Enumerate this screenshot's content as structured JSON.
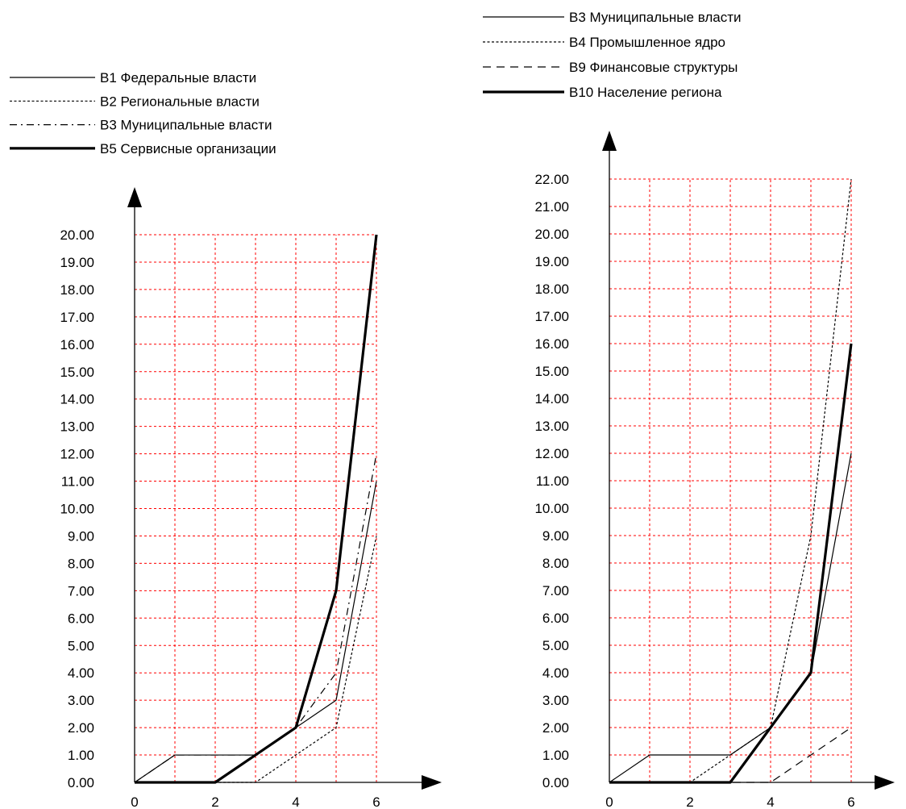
{
  "chart_data": [
    {
      "type": "line",
      "title": "",
      "xlabel": "",
      "ylabel": "",
      "xlim": [
        0,
        6
      ],
      "ylim": [
        0,
        20
      ],
      "x_ticks": [
        "0",
        "2",
        "4",
        "6"
      ],
      "y_ticks": [
        "0.00",
        "1.00",
        "2.00",
        "3.00",
        "4.00",
        "5.00",
        "6.00",
        "7.00",
        "8.00",
        "9.00",
        "10.00",
        "11.00",
        "12.00",
        "13.00",
        "14.00",
        "15.00",
        "16.00",
        "17.00",
        "18.00",
        "19.00",
        "20.00"
      ],
      "grid": true,
      "grid_color": "#ff0000",
      "legend_position": "top-left",
      "x": [
        0,
        1,
        2,
        3,
        4,
        5,
        6
      ],
      "series": [
        {
          "name": "B1 Федеральные власти",
          "style": "solid",
          "values": [
            0,
            1,
            1,
            1,
            2,
            3,
            11
          ]
        },
        {
          "name": "B2 Региональные власти",
          "style": "dotted",
          "values": [
            0,
            0,
            0,
            0,
            1,
            2,
            9
          ]
        },
        {
          "name": "B3 Муниципальные власти",
          "style": "dashdot",
          "values": [
            0,
            1,
            1,
            1,
            2,
            4,
            12
          ]
        },
        {
          "name": "B5 Сервисные организации",
          "style": "bold",
          "values": [
            0,
            0,
            0,
            1,
            2,
            7,
            20
          ]
        }
      ]
    },
    {
      "type": "line",
      "title": "",
      "xlabel": "",
      "ylabel": "",
      "xlim": [
        0,
        6
      ],
      "ylim": [
        0,
        22
      ],
      "x_ticks": [
        "0",
        "2",
        "4",
        "6"
      ],
      "y_ticks": [
        "0.00",
        "1.00",
        "2.00",
        "3.00",
        "4.00",
        "5.00",
        "6.00",
        "7.00",
        "8.00",
        "9.00",
        "10.00",
        "11.00",
        "12.00",
        "13.00",
        "14.00",
        "15.00",
        "16.00",
        "17.00",
        "18.00",
        "19.00",
        "20.00",
        "21.00",
        "22.00"
      ],
      "grid": true,
      "grid_color": "#ff0000",
      "legend_position": "top-left",
      "x": [
        0,
        1,
        2,
        3,
        4,
        5,
        6
      ],
      "series": [
        {
          "name": "B3 Муниципальные власти",
          "style": "solid",
          "values": [
            0,
            1,
            1,
            1,
            2,
            4,
            12
          ]
        },
        {
          "name": "B4 Промышленное ядро",
          "style": "dotted",
          "values": [
            0,
            0,
            0,
            1,
            2,
            9,
            22
          ]
        },
        {
          "name": "B9 Финансовые структуры",
          "style": "dashed",
          "values": [
            0,
            0,
            0,
            0,
            0,
            1,
            2
          ]
        },
        {
          "name": "B10 Население региона",
          "style": "bold",
          "values": [
            0,
            0,
            0,
            0,
            2,
            4,
            16
          ]
        }
      ]
    }
  ]
}
